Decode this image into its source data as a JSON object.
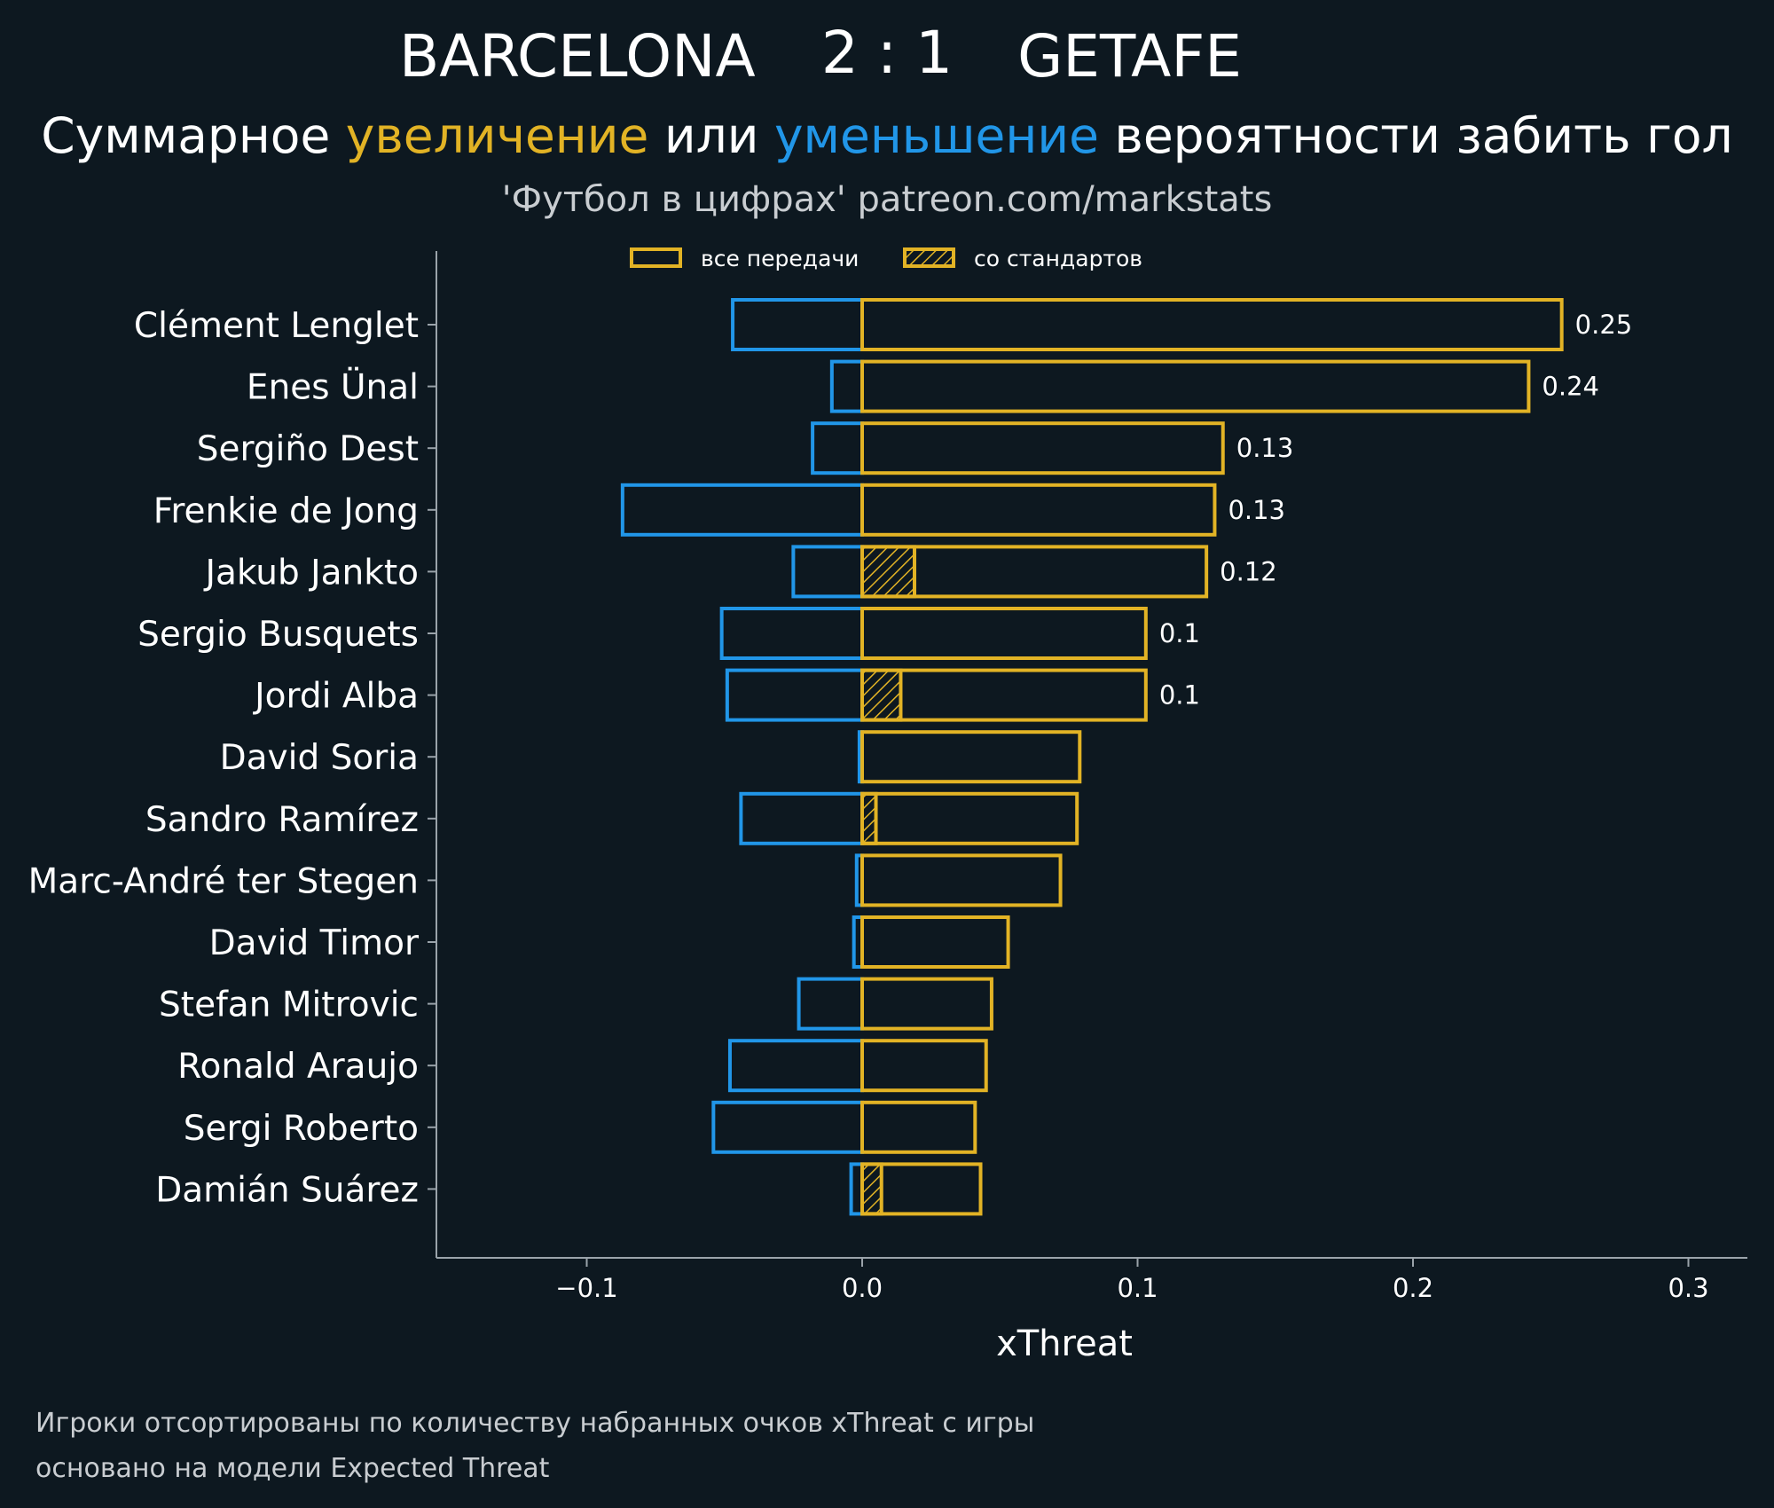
{
  "colors": {
    "background": "#0d1820",
    "increase": "#e2b325",
    "decrease": "#2196e8",
    "axis": "#9aa3aa",
    "text": "#ffffff",
    "muted": "#c9cdd1"
  },
  "header": {
    "home_team": "BARCELONA",
    "score": "2 : 1",
    "away_team": "GETAFE",
    "subtitle_part1": "Суммарное ",
    "subtitle_increase": "увеличение",
    "subtitle_part2": " или ",
    "subtitle_decrease": "уменьшение",
    "subtitle_part3": " вероятности забить гол",
    "credit": "'Футбол в цифрах' patreon.com/markstats"
  },
  "legend": {
    "all_passes": "все передачи",
    "set_pieces": "со стандартов"
  },
  "footnotes": {
    "line1": "Игроки отсортированы по количеству набранных очков xThreat с игры",
    "line2": "основано на модели Expected Threat"
  },
  "chart_data": {
    "type": "bar",
    "orientation": "horizontal",
    "xlabel": "xThreat",
    "xlim": [
      -0.155,
      0.322
    ],
    "xticks": [
      -0.1,
      0.0,
      0.1,
      0.2,
      0.3
    ],
    "xtick_labels": [
      "−0.1",
      "0.0",
      "0.1",
      "0.2",
      "0.3"
    ],
    "players": [
      {
        "name": "Clément Lenglet",
        "negative": -0.047,
        "positive": 0.254,
        "set_piece": 0,
        "label": "0.25"
      },
      {
        "name": "Enes Ünal",
        "negative": -0.011,
        "positive": 0.242,
        "set_piece": 0,
        "label": "0.24"
      },
      {
        "name": "Sergiño Dest",
        "negative": -0.018,
        "positive": 0.131,
        "set_piece": 0,
        "label": "0.13"
      },
      {
        "name": "Frenkie de Jong",
        "negative": -0.087,
        "positive": 0.128,
        "set_piece": 0,
        "label": "0.13"
      },
      {
        "name": "Jakub Jankto",
        "negative": -0.025,
        "positive": 0.125,
        "set_piece": 0.019,
        "label": "0.12"
      },
      {
        "name": "Sergio Busquets",
        "negative": -0.051,
        "positive": 0.103,
        "set_piece": 0,
        "label": "0.1"
      },
      {
        "name": "Jordi Alba",
        "negative": -0.049,
        "positive": 0.103,
        "set_piece": 0.014,
        "label": "0.1"
      },
      {
        "name": "David Soria",
        "negative": -0.001,
        "positive": 0.079,
        "set_piece": 0,
        "label": ""
      },
      {
        "name": "Sandro Ramírez",
        "negative": -0.044,
        "positive": 0.078,
        "set_piece": 0.005,
        "label": ""
      },
      {
        "name": "Marc-André ter Stegen",
        "negative": -0.002,
        "positive": 0.072,
        "set_piece": 0,
        "label": ""
      },
      {
        "name": "David Timor",
        "negative": -0.003,
        "positive": 0.053,
        "set_piece": 0,
        "label": ""
      },
      {
        "name": "Stefan Mitrovic",
        "negative": -0.023,
        "positive": 0.047,
        "set_piece": 0,
        "label": ""
      },
      {
        "name": "Ronald Araujo",
        "negative": -0.048,
        "positive": 0.045,
        "set_piece": 0,
        "label": ""
      },
      {
        "name": "Sergi Roberto",
        "negative": -0.054,
        "positive": 0.041,
        "set_piece": 0,
        "label": ""
      },
      {
        "name": "Damián Suárez",
        "negative": -0.004,
        "positive": 0.043,
        "set_piece": 0.007,
        "label": ""
      }
    ]
  }
}
